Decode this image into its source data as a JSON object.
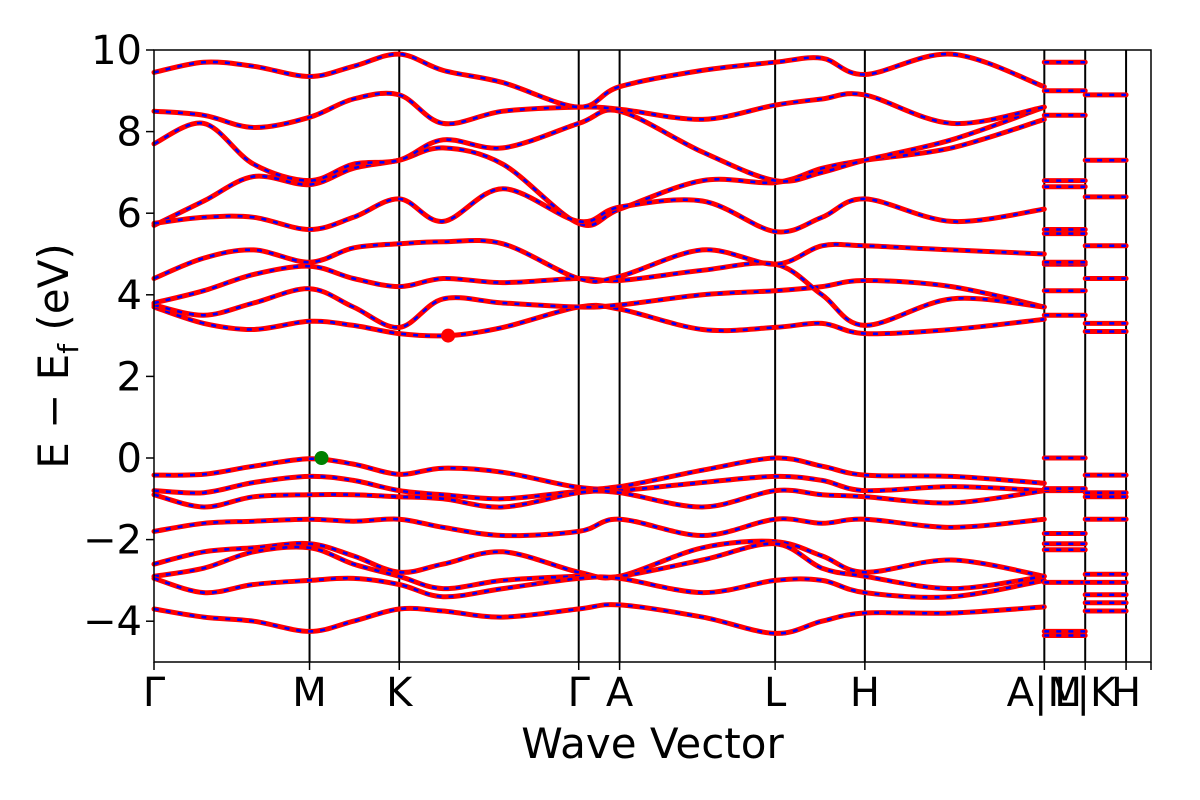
{
  "chart_data": {
    "type": "line",
    "xlabel": "Wave Vector",
    "ylabel": "E − E",
    "ylabel_sub": "f",
    "ylabel_unit": " (eV)",
    "ylim": [
      -5,
      10
    ],
    "yticks": [
      -4,
      -2,
      0,
      2,
      4,
      6,
      8,
      10
    ],
    "xlim": [
      0,
      100
    ],
    "kpoints": [
      {
        "label": "Γ",
        "x": 0
      },
      {
        "label": "M",
        "x": 15.6
      },
      {
        "label": "K",
        "x": 24.6
      },
      {
        "label": "Γ",
        "x": 42.6
      },
      {
        "label": "A",
        "x": 46.7
      },
      {
        "label": "L",
        "x": 62.3
      },
      {
        "label": "H",
        "x": 71.3
      },
      {
        "label": "A|M",
        "x": 89.3
      },
      {
        "label": "L|K",
        "x": 93.4
      },
      {
        "label": "H",
        "x": 97.5
      }
    ],
    "band_colors": {
      "spin_up": "#ff0000",
      "spin_down": "#0000ff"
    },
    "markers": [
      {
        "label": "CBM",
        "x": 29.5,
        "y": 3.0,
        "color": "#ff0000"
      },
      {
        "label": "VBM",
        "x": 16.8,
        "y": 0.0,
        "color": "#008000"
      }
    ],
    "valence_bands": [
      {
        "name": "vb1",
        "points": [
          [
            0,
            -0.42
          ],
          [
            5,
            -0.4
          ],
          [
            10,
            -0.2
          ],
          [
            15.6,
            -0.02
          ],
          [
            20,
            -0.15
          ],
          [
            24.6,
            -0.4
          ],
          [
            29,
            -0.25
          ],
          [
            35,
            -0.35
          ],
          [
            42.6,
            -0.72
          ],
          [
            46.7,
            -0.7
          ],
          [
            55,
            -0.3
          ],
          [
            62.3,
            0.0
          ],
          [
            67,
            -0.2
          ],
          [
            71.3,
            -0.42
          ],
          [
            80,
            -0.45
          ],
          [
            89.3,
            -0.62
          ]
        ]
      },
      {
        "name": "vb2",
        "points": [
          [
            0,
            -0.8
          ],
          [
            5,
            -0.85
          ],
          [
            10,
            -0.6
          ],
          [
            15.6,
            -0.45
          ],
          [
            20,
            -0.55
          ],
          [
            24.6,
            -0.8
          ],
          [
            29,
            -0.9
          ],
          [
            35,
            -1.0
          ],
          [
            42.6,
            -0.82
          ],
          [
            46.7,
            -0.8
          ],
          [
            55,
            -0.6
          ],
          [
            62.3,
            -0.45
          ],
          [
            67,
            -0.55
          ],
          [
            71.3,
            -0.8
          ],
          [
            80,
            -0.7
          ],
          [
            89.3,
            -0.8
          ]
        ]
      },
      {
        "name": "vb3",
        "points": [
          [
            0,
            -0.9
          ],
          [
            5,
            -1.2
          ],
          [
            10,
            -0.95
          ],
          [
            15.6,
            -0.9
          ],
          [
            20,
            -0.9
          ],
          [
            24.6,
            -0.95
          ],
          [
            29,
            -1.0
          ],
          [
            35,
            -1.2
          ],
          [
            42.6,
            -0.85
          ],
          [
            46.7,
            -0.85
          ],
          [
            55,
            -1.2
          ],
          [
            62.3,
            -0.8
          ],
          [
            67,
            -0.9
          ],
          [
            71.3,
            -0.95
          ],
          [
            80,
            -1.1
          ],
          [
            89.3,
            -0.8
          ]
        ]
      },
      {
        "name": "vb4",
        "points": [
          [
            0,
            -1.8
          ],
          [
            5,
            -1.6
          ],
          [
            10,
            -1.55
          ],
          [
            15.6,
            -1.5
          ],
          [
            20,
            -1.55
          ],
          [
            24.6,
            -1.5
          ],
          [
            29,
            -1.7
          ],
          [
            35,
            -1.9
          ],
          [
            42.6,
            -1.8
          ],
          [
            46.7,
            -1.5
          ],
          [
            55,
            -1.9
          ],
          [
            62.3,
            -1.5
          ],
          [
            67,
            -1.6
          ],
          [
            71.3,
            -1.5
          ],
          [
            80,
            -1.7
          ],
          [
            89.3,
            -1.5
          ]
        ]
      },
      {
        "name": "vb5",
        "points": [
          [
            0,
            -2.6
          ],
          [
            5,
            -2.3
          ],
          [
            10,
            -2.2
          ],
          [
            15.6,
            -2.1
          ],
          [
            20,
            -2.4
          ],
          [
            24.6,
            -2.8
          ],
          [
            29,
            -2.6
          ],
          [
            35,
            -2.3
          ],
          [
            42.6,
            -2.8
          ],
          [
            46.7,
            -2.9
          ],
          [
            55,
            -2.2
          ],
          [
            62.3,
            -2.05
          ],
          [
            67,
            -2.4
          ],
          [
            71.3,
            -2.8
          ],
          [
            80,
            -2.5
          ],
          [
            89.3,
            -2.9
          ]
        ]
      },
      {
        "name": "vb6",
        "points": [
          [
            0,
            -2.9
          ],
          [
            5,
            -2.7
          ],
          [
            10,
            -2.3
          ],
          [
            15.6,
            -2.2
          ],
          [
            20,
            -2.6
          ],
          [
            24.6,
            -2.9
          ],
          [
            29,
            -3.2
          ],
          [
            35,
            -3.0
          ],
          [
            42.6,
            -2.9
          ],
          [
            46.7,
            -2.9
          ],
          [
            55,
            -2.5
          ],
          [
            62.3,
            -2.1
          ],
          [
            67,
            -2.7
          ],
          [
            71.3,
            -2.9
          ],
          [
            80,
            -3.2
          ],
          [
            89.3,
            -2.9
          ]
        ]
      },
      {
        "name": "vb7",
        "points": [
          [
            0,
            -2.95
          ],
          [
            5,
            -3.3
          ],
          [
            10,
            -3.1
          ],
          [
            15.6,
            -3.0
          ],
          [
            20,
            -2.95
          ],
          [
            24.6,
            -3.1
          ],
          [
            29,
            -3.4
          ],
          [
            35,
            -3.2
          ],
          [
            42.6,
            -2.95
          ],
          [
            46.7,
            -2.95
          ],
          [
            55,
            -3.3
          ],
          [
            62.3,
            -3.0
          ],
          [
            67,
            -3.0
          ],
          [
            71.3,
            -3.3
          ],
          [
            80,
            -3.4
          ],
          [
            89.3,
            -3.0
          ]
        ]
      },
      {
        "name": "vb8",
        "points": [
          [
            0,
            -3.7
          ],
          [
            5,
            -3.9
          ],
          [
            10,
            -4.0
          ],
          [
            15.6,
            -4.25
          ],
          [
            20,
            -4.0
          ],
          [
            24.6,
            -3.7
          ],
          [
            29,
            -3.75
          ],
          [
            35,
            -3.9
          ],
          [
            42.6,
            -3.7
          ],
          [
            46.7,
            -3.6
          ],
          [
            55,
            -3.9
          ],
          [
            62.3,
            -4.3
          ],
          [
            67,
            -4.0
          ],
          [
            71.3,
            -3.8
          ],
          [
            80,
            -3.8
          ],
          [
            89.3,
            -3.65
          ]
        ]
      }
    ],
    "conduction_bands": [
      {
        "name": "cb1",
        "points": [
          [
            0,
            3.7
          ],
          [
            5,
            3.3
          ],
          [
            10,
            3.15
          ],
          [
            15.6,
            3.35
          ],
          [
            20,
            3.25
          ],
          [
            24.6,
            3.05
          ],
          [
            29.5,
            3.0
          ],
          [
            35,
            3.2
          ],
          [
            42.6,
            3.7
          ],
          [
            46.7,
            3.65
          ],
          [
            55,
            3.15
          ],
          [
            62.3,
            3.2
          ],
          [
            67,
            3.3
          ],
          [
            71.3,
            3.05
          ],
          [
            80,
            3.15
          ],
          [
            89.3,
            3.4
          ]
        ]
      },
      {
        "name": "cb2",
        "points": [
          [
            0,
            3.75
          ],
          [
            5,
            3.5
          ],
          [
            10,
            3.8
          ],
          [
            15.6,
            4.15
          ],
          [
            20,
            3.7
          ],
          [
            24.6,
            3.2
          ],
          [
            29,
            3.9
          ],
          [
            35,
            3.8
          ],
          [
            42.6,
            3.7
          ],
          [
            46.7,
            3.75
          ],
          [
            55,
            4.0
          ],
          [
            62.3,
            4.1
          ],
          [
            67,
            4.2
          ],
          [
            71.3,
            4.35
          ],
          [
            80,
            4.2
          ],
          [
            89.3,
            3.7
          ]
        ]
      },
      {
        "name": "cb3",
        "points": [
          [
            0,
            3.8
          ],
          [
            5,
            4.1
          ],
          [
            10,
            4.5
          ],
          [
            15.6,
            4.7
          ],
          [
            20,
            4.4
          ],
          [
            24.6,
            4.2
          ],
          [
            29,
            4.4
          ],
          [
            35,
            4.3
          ],
          [
            42.6,
            4.4
          ],
          [
            46.7,
            4.35
          ],
          [
            55,
            4.6
          ],
          [
            62.3,
            4.75
          ],
          [
            67,
            4.0
          ],
          [
            71.3,
            3.25
          ],
          [
            80,
            3.9
          ],
          [
            89.3,
            3.7
          ]
        ]
      },
      {
        "name": "cb4",
        "points": [
          [
            0,
            4.4
          ],
          [
            5,
            4.9
          ],
          [
            10,
            5.1
          ],
          [
            15.6,
            4.8
          ],
          [
            20,
            5.15
          ],
          [
            24.6,
            5.25
          ],
          [
            29,
            5.3
          ],
          [
            35,
            5.25
          ],
          [
            42.6,
            4.4
          ],
          [
            46.7,
            4.45
          ],
          [
            55,
            5.1
          ],
          [
            62.3,
            4.75
          ],
          [
            67,
            5.2
          ],
          [
            71.3,
            5.2
          ],
          [
            80,
            5.1
          ],
          [
            89.3,
            5.0
          ]
        ]
      },
      {
        "name": "cb5",
        "points": [
          [
            0,
            5.7
          ],
          [
            5,
            6.3
          ],
          [
            10,
            6.9
          ],
          [
            15.6,
            6.7
          ],
          [
            20,
            7.1
          ],
          [
            24.6,
            7.3
          ],
          [
            29,
            7.6
          ],
          [
            35,
            7.2
          ],
          [
            42.6,
            5.75
          ],
          [
            46.7,
            6.1
          ],
          [
            55,
            6.8
          ],
          [
            62.3,
            6.75
          ],
          [
            67,
            7.1
          ],
          [
            71.3,
            7.3
          ],
          [
            80,
            7.6
          ],
          [
            89.3,
            8.3
          ]
        ]
      },
      {
        "name": "cb6",
        "points": [
          [
            0,
            5.75
          ],
          [
            5,
            5.9
          ],
          [
            10,
            5.9
          ],
          [
            15.6,
            5.6
          ],
          [
            20,
            5.9
          ],
          [
            24.6,
            6.35
          ],
          [
            29,
            5.8
          ],
          [
            35,
            6.6
          ],
          [
            42.6,
            5.8
          ],
          [
            46.7,
            6.15
          ],
          [
            55,
            6.3
          ],
          [
            62.3,
            5.55
          ],
          [
            67,
            5.9
          ],
          [
            71.3,
            6.35
          ],
          [
            80,
            5.8
          ],
          [
            89.3,
            6.1
          ]
        ]
      },
      {
        "name": "cb7",
        "points": [
          [
            0,
            7.7
          ],
          [
            5,
            8.2
          ],
          [
            10,
            7.2
          ],
          [
            15.6,
            6.8
          ],
          [
            20,
            7.2
          ],
          [
            24.6,
            7.3
          ],
          [
            29,
            7.8
          ],
          [
            35,
            7.6
          ],
          [
            42.6,
            8.2
          ],
          [
            46.7,
            8.5
          ],
          [
            55,
            7.5
          ],
          [
            62.3,
            6.8
          ],
          [
            67,
            7.0
          ],
          [
            71.3,
            7.3
          ],
          [
            80,
            7.8
          ],
          [
            89.3,
            8.6
          ]
        ]
      },
      {
        "name": "cb8",
        "points": [
          [
            0,
            8.5
          ],
          [
            5,
            8.4
          ],
          [
            10,
            8.1
          ],
          [
            15.6,
            8.35
          ],
          [
            20,
            8.8
          ],
          [
            24.6,
            8.9
          ],
          [
            29,
            8.2
          ],
          [
            35,
            8.5
          ],
          [
            42.6,
            8.6
          ],
          [
            46.7,
            8.55
          ],
          [
            55,
            8.3
          ],
          [
            62.3,
            8.65
          ],
          [
            67,
            8.8
          ],
          [
            71.3,
            8.9
          ],
          [
            80,
            8.2
          ],
          [
            89.3,
            8.6
          ]
        ]
      },
      {
        "name": "cb9",
        "points": [
          [
            0,
            9.45
          ],
          [
            5,
            9.7
          ],
          [
            10,
            9.6
          ],
          [
            15.6,
            9.35
          ],
          [
            20,
            9.6
          ],
          [
            24.6,
            9.9
          ],
          [
            29,
            9.5
          ],
          [
            35,
            9.2
          ],
          [
            42.6,
            8.6
          ],
          [
            46.7,
            9.1
          ],
          [
            55,
            9.5
          ],
          [
            62.3,
            9.7
          ],
          [
            67,
            9.8
          ],
          [
            71.3,
            9.4
          ],
          [
            80,
            9.9
          ],
          [
            89.3,
            9.1
          ]
        ]
      }
    ],
    "segment_bands": [
      {
        "x": [
          89.3,
          93.4
        ],
        "energies": [
          -4.35,
          -4.25,
          -3.05,
          -2.25,
          -2.1,
          -1.85,
          -0.8,
          -0.75,
          0.0,
          3.5,
          4.1,
          4.75,
          4.8,
          5.5,
          5.6,
          6.65,
          6.8,
          8.4,
          9.0,
          9.7
        ]
      },
      {
        "x": [
          93.4,
          97.5
        ],
        "energies": [
          -3.75,
          -3.55,
          -3.35,
          -3.05,
          -2.85,
          -1.5,
          -0.95,
          -0.85,
          -0.42,
          3.1,
          3.3,
          4.4,
          5.2,
          6.4,
          7.3,
          8.9
        ]
      }
    ]
  }
}
